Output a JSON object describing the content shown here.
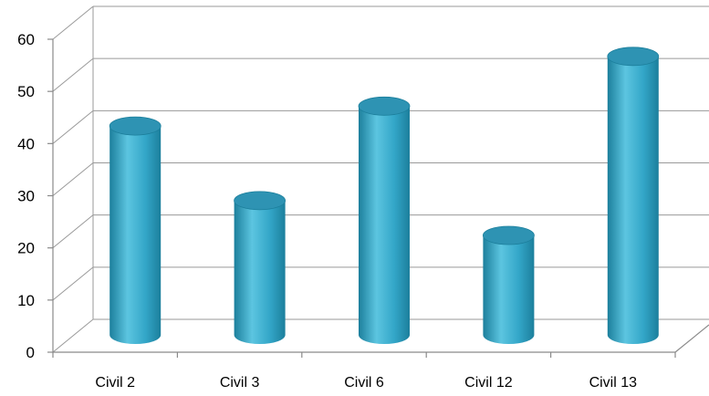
{
  "chart_data": {
    "type": "bar",
    "style": "3d-cylinder",
    "categories": [
      "Civil 2",
      "Civil 3",
      "Civil 6",
      "Civil 12",
      "Civil 13"
    ],
    "series": [
      {
        "values": [
          42,
          27,
          46,
          20,
          56
        ]
      }
    ],
    "ylim": [
      0,
      60
    ],
    "yticks": [
      "0",
      "10",
      "20",
      "30",
      "40",
      "50",
      "60"
    ],
    "title": "",
    "xlabel": "",
    "ylabel": "",
    "grid": true,
    "legend": "none",
    "colors": {
      "bar_light": "#5cc5e0",
      "bar_mid": "#33a6c8",
      "bar_dark": "#1c7f9c",
      "bar_top": "#2e93b3",
      "grid": "#9a9a9a"
    }
  }
}
